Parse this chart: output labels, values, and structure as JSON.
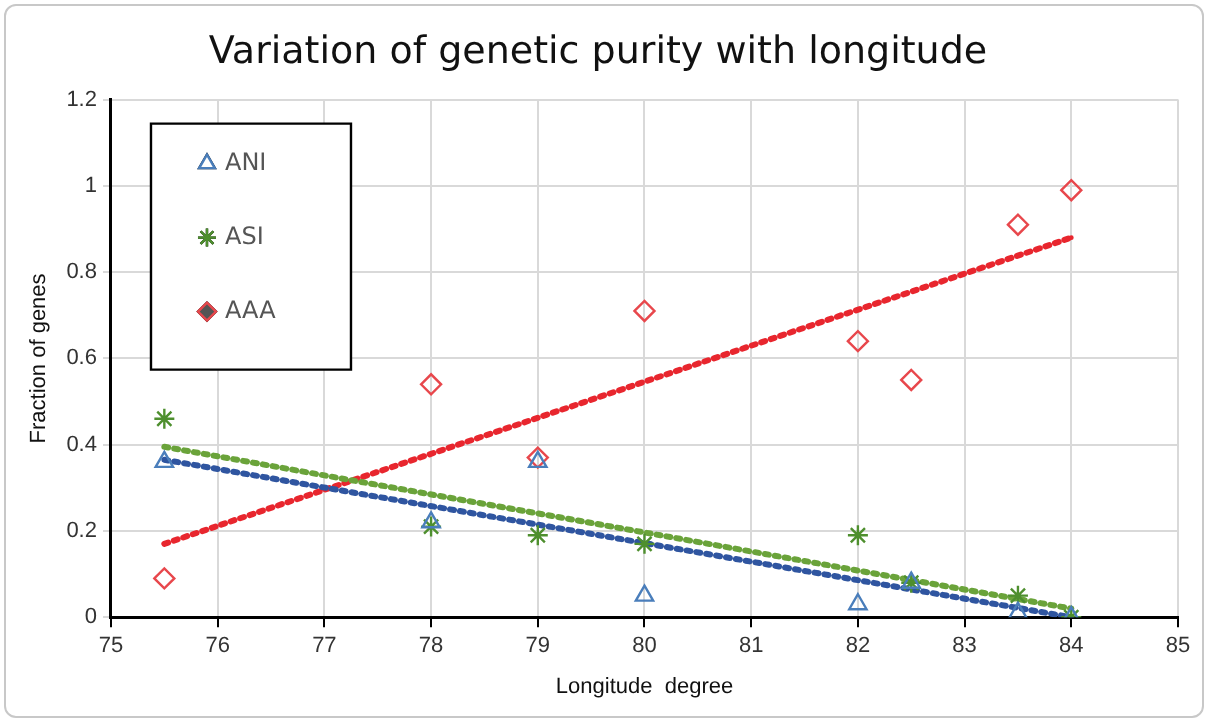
{
  "chart_data": {
    "type": "scatter",
    "title": "Variation of genetic purity with longitude",
    "xlabel": "Longitude  degree",
    "ylabel": "Fraction of genes",
    "x": [
      75.5,
      78,
      79,
      80,
      82,
      82.5,
      83.5,
      84
    ],
    "series": [
      {
        "name": "ANI",
        "color": "#4a7ebb",
        "marker": "triangle",
        "values": [
          0.36,
          0.22,
          0.36,
          0.05,
          0.03,
          0.08,
          0.01,
          0.0
        ]
      },
      {
        "name": "ASI",
        "color": "#4e8f2e",
        "marker": "cross",
        "values": [
          0.46,
          0.21,
          0.19,
          0.17,
          0.19,
          0.08,
          0.05,
          0.0
        ]
      },
      {
        "name": "AAA",
        "color": "#e8474c",
        "marker": "diamond",
        "values": [
          0.09,
          0.54,
          0.37,
          0.71,
          0.64,
          0.55,
          0.91,
          0.99
        ]
      },
      {
        "type": "line",
        "color": "#2f55a0",
        "marker": "none",
        "line_style": "dotted",
        "values": [
          0.365,
          null,
          null,
          null,
          null,
          null,
          null,
          0.0
        ]
      },
      {
        "type": "line",
        "color": "#6aa33a",
        "marker": "none",
        "line_style": "dotted",
        "values": [
          0.395,
          null,
          null,
          null,
          null,
          null,
          null,
          0.02
        ]
      },
      {
        "type": "line",
        "color": "#e8262e",
        "marker": "none",
        "line_style": "dotted",
        "values": [
          0.17,
          null,
          null,
          null,
          null,
          null,
          null,
          0.88
        ]
      }
    ],
    "xlim": [
      75,
      85
    ],
    "xticks": [
      75,
      76,
      77,
      78,
      79,
      80,
      81,
      82,
      83,
      84,
      85
    ],
    "ylim": [
      0,
      1.2
    ],
    "yticks": [
      0,
      0.2,
      0.4,
      0.6,
      0.8,
      1,
      1.2
    ],
    "grid": true,
    "legend": "top left"
  }
}
